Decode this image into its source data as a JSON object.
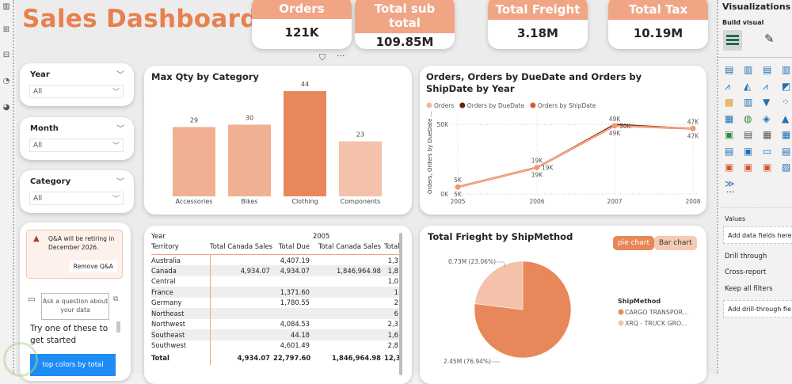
{
  "dashboard": {
    "title": "Sales Dashboard"
  },
  "kpis": [
    {
      "label": "Orders",
      "value": "121K"
    },
    {
      "label": "Total sub total",
      "value": "109.85M"
    },
    {
      "label": "Total Freight",
      "value": "3.18M"
    },
    {
      "label": "Total Tax",
      "value": "10.19M"
    }
  ],
  "slicers": [
    {
      "label": "Year",
      "value": "All"
    },
    {
      "label": "Month",
      "value": "All"
    },
    {
      "label": "Category",
      "value": "All"
    }
  ],
  "qna": {
    "warning": "Q&A will be retiring in December 2026.",
    "remove_button": "Remove Q&A",
    "input_placeholder": "Ask a question about your data",
    "suggest_heading": "Try one of these to get started",
    "suggestion": "top colors by total"
  },
  "colors": {
    "accent": "#e8804f",
    "kpi_header": "#f0a585",
    "light": "#f4c2aa",
    "dark": "#6b2310"
  },
  "chart_data": [
    {
      "type": "bar",
      "title": "Max Qty by Category",
      "categories": [
        "Accessories",
        "Bikes",
        "Clothing",
        "Components"
      ],
      "values": [
        29,
        30,
        44,
        23
      ],
      "colors": [
        "#f2b092",
        "#f2b092",
        "#e8885a",
        "#f4c2aa"
      ],
      "xlabel": "",
      "ylabel": "",
      "ylim": [
        0,
        48
      ]
    },
    {
      "type": "line",
      "title": "Orders, Orders by DueDate and Orders by ShipDate by Year",
      "x": [
        "2005",
        "2006",
        "2007",
        "2008"
      ],
      "series": [
        {
          "name": "Orders",
          "values": [
            5,
            19,
            49,
            47
          ],
          "color": "#f4b899"
        },
        {
          "name": "Orders by DueDate",
          "values": [
            5,
            19,
            50,
            47
          ],
          "color": "#6b2310"
        },
        {
          "name": "Orders by ShipDate",
          "values": [
            5,
            19,
            49,
            47
          ],
          "color": "#e0592a"
        }
      ],
      "data_labels": [
        "5K",
        "19K",
        "49K",
        "47K"
      ],
      "data_labels_due": [
        "5K",
        "19K",
        "50K",
        "47K"
      ],
      "y_ticks": [
        "0K",
        "50K"
      ],
      "ylabel": "Orders, Orders by DueDate ...",
      "ylim": [
        0,
        58
      ],
      "legend_position": "top-left",
      "grid": true
    },
    {
      "type": "pie",
      "title": "Total Frieght by ShipMethod",
      "legend_title": "ShipMethod",
      "slices": [
        {
          "label": "CARGO TRANSPOR...",
          "value": 2.45,
          "percent": 76.94,
          "display": "2.45M (76.94%)",
          "color": "#e8885a"
        },
        {
          "label": "XRQ - TRUCK GRO...",
          "value": 0.73,
          "percent": 23.06,
          "display": "0.73M (23.06%)",
          "color": "#f4c2aa"
        }
      ],
      "buttons": [
        "pie chart",
        "Bar chart"
      ]
    }
  ],
  "matrix": {
    "row_header1": "Year",
    "row_header2": "Territory",
    "col_group": "2005",
    "columns": [
      "Total Canada Sales",
      "Total Due",
      "Total Canada Sales",
      "Total"
    ],
    "rows": [
      {
        "name": "Australia",
        "cells": [
          "",
          "4,407.19",
          "",
          "1,3"
        ]
      },
      {
        "name": "Canada",
        "cells": [
          "4,934.07",
          "4,934.07",
          "1,846,964.98",
          "1,8"
        ]
      },
      {
        "name": "Central",
        "cells": [
          "",
          "",
          "",
          "1,0"
        ]
      },
      {
        "name": "France",
        "cells": [
          "",
          "1,371.60",
          "",
          "1"
        ]
      },
      {
        "name": "Germany",
        "cells": [
          "",
          "1,780.55",
          "",
          "2"
        ]
      },
      {
        "name": "Northeast",
        "cells": [
          "",
          "",
          "",
          "6"
        ]
      },
      {
        "name": "Northwest",
        "cells": [
          "",
          "4,084.53",
          "",
          "2,3"
        ]
      },
      {
        "name": "Southeast",
        "cells": [
          "",
          "44.18",
          "",
          "1,6"
        ]
      },
      {
        "name": "Southwest",
        "cells": [
          "",
          "4,601.49",
          "",
          "2,8"
        ]
      }
    ],
    "total": {
      "name": "Total",
      "cells": [
        "4,934.07",
        "22,797.60",
        "1,846,964.98",
        "12,3"
      ]
    }
  },
  "vizpane": {
    "title": "Visualizations",
    "build_visual": "Build visual",
    "values_label": "Values",
    "values_placeholder": "Add data fields here",
    "drill_through": "Drill through",
    "cross_report": "Cross-report",
    "keep_filters": "Keep all filters",
    "drill_placeholder": "Add drill-through fie",
    "more": "···"
  },
  "header_icons": {
    "more": "···"
  }
}
